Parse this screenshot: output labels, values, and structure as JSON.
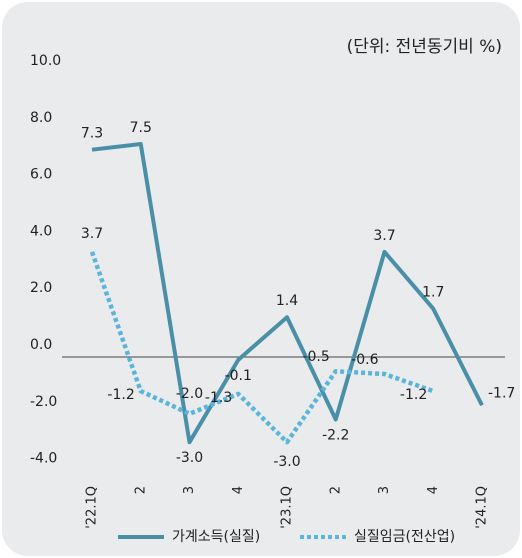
{
  "chart_data": {
    "type": "line",
    "unit_label": "(단위: 전년동기비 %)",
    "categories": [
      "'22.1Q",
      "2",
      "3",
      "4",
      "'23.1Q",
      "2",
      "3",
      "4",
      "'24.1Q"
    ],
    "series": [
      {
        "name": "가계소득(실질)",
        "color": "#4a8fa8",
        "style": "solid",
        "values": [
          7.3,
          7.5,
          -3.0,
          -0.1,
          1.4,
          -2.2,
          3.7,
          1.7,
          -1.7
        ],
        "value_labels": [
          "7.3",
          "7.5",
          "-3.0",
          "-0.1",
          "1.4",
          "-2.2",
          "3.7",
          "1.7",
          "-1.7"
        ]
      },
      {
        "name": "실질임금(전산업)",
        "color": "#5ab4dc",
        "style": "dotted",
        "values": [
          3.7,
          -1.2,
          -2.0,
          -1.3,
          -3.0,
          -0.5,
          -0.6,
          -1.2,
          null
        ],
        "value_labels": [
          "3.7",
          "-1.2",
          "-2.0",
          "-1.3",
          "-3.0",
          "-0.5",
          "-0.6",
          "-1.2",
          null
        ]
      }
    ],
    "ylim": [
      -4,
      10
    ],
    "yticks": [
      {
        "value": -4,
        "label": "-4.0"
      },
      {
        "value": -2,
        "label": "-2.0"
      },
      {
        "value": 0,
        "label": "0.0"
      },
      {
        "value": 2,
        "label": "2.0"
      },
      {
        "value": 4,
        "label": "4.0"
      },
      {
        "value": 6,
        "label": "6.0"
      },
      {
        "value": 8,
        "label": "8.0"
      },
      {
        "value": 10,
        "label": "10.0"
      }
    ]
  }
}
